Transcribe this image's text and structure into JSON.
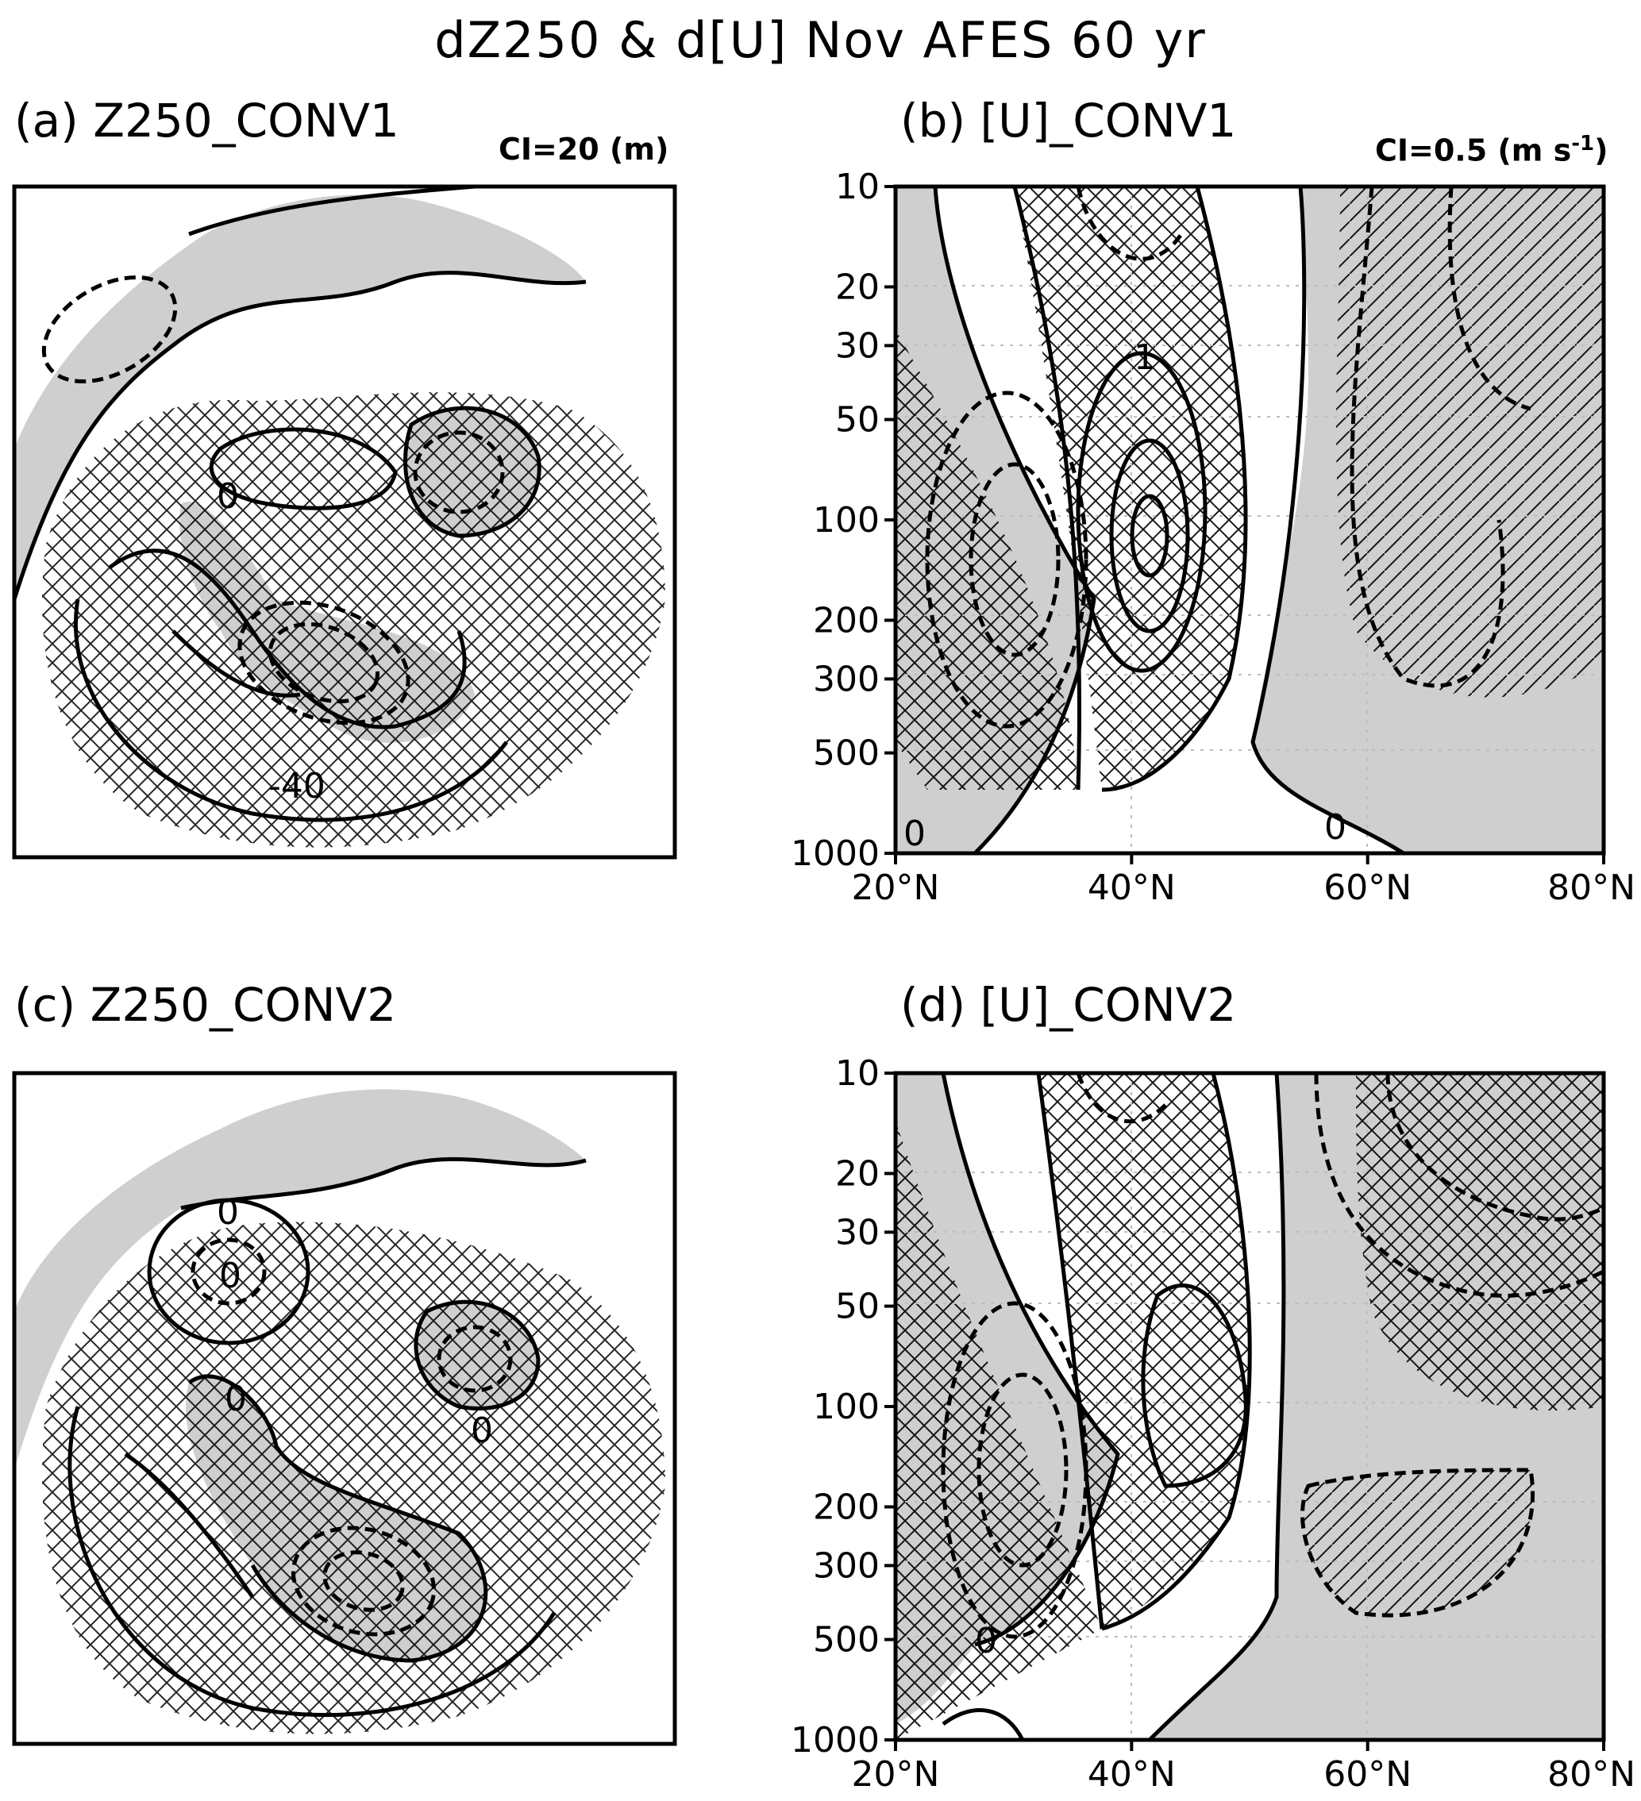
{
  "title": "dZ250 & d[U] Nov AFES 60 yr",
  "panels": {
    "a": {
      "label": "(a) Z250_CONV1",
      "ci": "CI=20 (m)",
      "contour_labels": [
        "0",
        "-40"
      ]
    },
    "b": {
      "label": "(b) [U]_CONV1",
      "ci": "CI=0.5 (m s",
      "ci_sup": "-1",
      "ci_close": ")",
      "contour_labels": [
        "0",
        "0",
        "1"
      ]
    },
    "c": {
      "label": "(c) Z250_CONV2",
      "contour_labels": [
        "0",
        "0",
        "0",
        "0"
      ]
    },
    "d": {
      "label": "(d) [U]_CONV2",
      "contour_labels": [
        "0"
      ]
    }
  },
  "axes": {
    "pressure_ticks": [
      "10",
      "20",
      "30",
      "50",
      "100",
      "200",
      "300",
      "500",
      "1000"
    ],
    "pressure_values": [
      10,
      20,
      30,
      50,
      100,
      200,
      300,
      500,
      1000
    ],
    "latitude_ticks": [
      "20°N",
      "40°N",
      "60°N",
      "80°N"
    ],
    "latitude_values": [
      20,
      40,
      60,
      80
    ]
  },
  "colors": {
    "shading": "#cfcfcf",
    "contour": "#000000",
    "grid": "#bdbdbd"
  }
}
